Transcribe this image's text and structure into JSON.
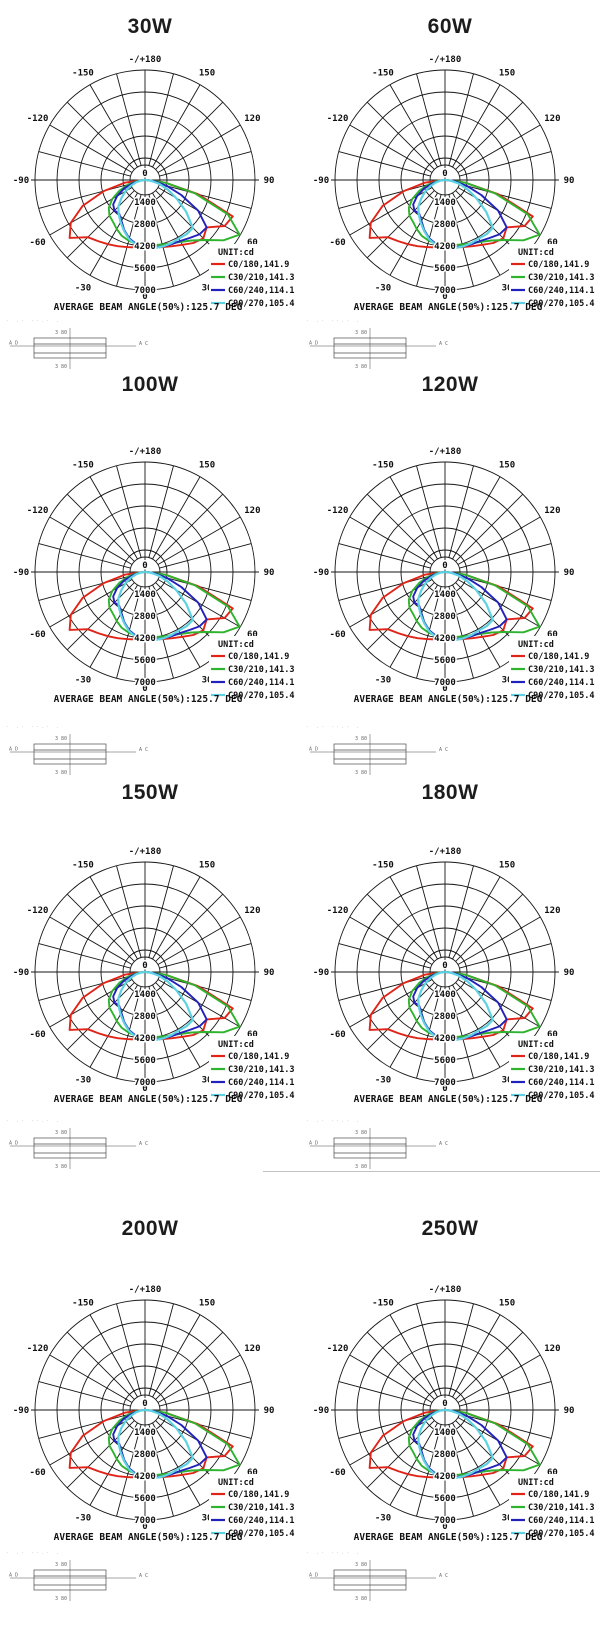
{
  "page": {
    "background": "#ffffff"
  },
  "chart_data": {
    "type": "line",
    "coordinate": "polar-photometric",
    "titles": [
      "30W",
      "60W",
      "100W",
      "120W",
      "150W",
      "180W",
      "200W",
      "250W"
    ],
    "unit_label": "UNIT:cd",
    "beam_angle_text": "AVERAGE BEAM ANGLE(50%):125.7 DEG",
    "top_angle_label": "-/+180",
    "bottom_angle_label": "0",
    "center_radial_label": "0",
    "angle_labels_right": [
      "150",
      "120",
      "90",
      "60",
      "30"
    ],
    "angle_labels_left": [
      "-150",
      "-120",
      "-90",
      "-60",
      "-30"
    ],
    "angle_label_degrees": [
      150,
      120,
      90,
      60,
      30
    ],
    "radial_tick_labels": [
      "1400",
      "2800",
      "4200",
      "5600",
      "7000"
    ],
    "radial_tick_values": [
      1400,
      2800,
      4200,
      5600,
      7000
    ],
    "radial_max": 7000,
    "grid": {
      "rings": 5,
      "spoke_step_deg": 15,
      "color": "#161616"
    },
    "legend_position": "lower-right",
    "gamma_deg": [
      -90,
      -82.5,
      -75,
      -67.5,
      -60,
      -52.5,
      -45,
      -37.5,
      -30,
      -22.5,
      -15,
      -7.5,
      0,
      7.5,
      15,
      22.5,
      30,
      37.5,
      45,
      52.5,
      60,
      67.5,
      75,
      82.5,
      90
    ],
    "series": [
      {
        "name": "C0/180,141.9",
        "color": "#e02418",
        "values": [
          100,
          1300,
          2700,
          4300,
          5450,
          6050,
          5150,
          4900,
          4720,
          4560,
          4420,
          4330,
          4300,
          4340,
          4420,
          4560,
          4760,
          5050,
          5250,
          4950,
          5850,
          6050,
          3500,
          1300,
          100
        ]
      },
      {
        "name": "C30/210,141.3",
        "color": "#2db32d",
        "values": [
          80,
          500,
          1100,
          1750,
          2400,
          2900,
          3200,
          3350,
          3600,
          3850,
          4000,
          4100,
          4150,
          4180,
          4250,
          4350,
          4550,
          4850,
          5400,
          6300,
          6950,
          5700,
          3300,
          1300,
          100
        ]
      },
      {
        "name": "C60/240,114.1",
        "color": "#2121bb",
        "values": [
          60,
          350,
          850,
          1450,
          2050,
          2550,
          2750,
          2700,
          3000,
          3450,
          3850,
          4120,
          4250,
          4300,
          4380,
          4420,
          4480,
          4650,
          4900,
          4950,
          3900,
          2500,
          1450,
          600,
          60
        ]
      },
      {
        "name": "C90/270,105.4",
        "color": "#5cd2e2",
        "values": [
          50,
          250,
          600,
          1000,
          1450,
          1900,
          2400,
          2750,
          3100,
          3500,
          3900,
          4200,
          4350,
          4380,
          4380,
          4350,
          4300,
          4350,
          4300,
          3300,
          2300,
          1550,
          950,
          400,
          50
        ]
      }
    ]
  },
  "dimension_drawing": {
    "top_label": "3 80",
    "bottom_label": "3 80",
    "left_label": "A D",
    "right_label": "A C"
  },
  "decor": {
    "faint_marks": "- .- --.- ."
  }
}
